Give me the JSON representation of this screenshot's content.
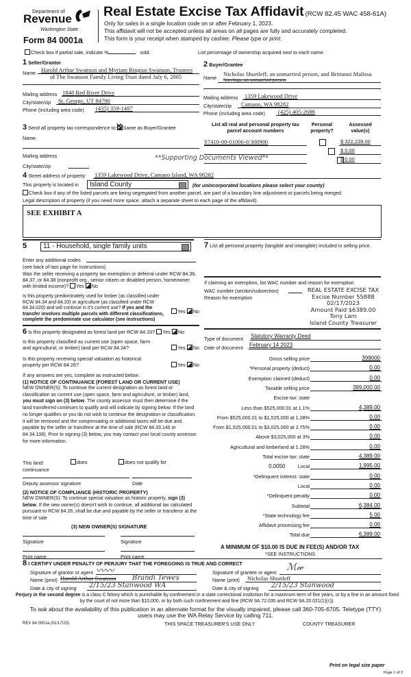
{
  "header": {
    "dept_of": "Department of",
    "revenue": "Revenue",
    "state": "Washington State",
    "form_number": "Form 84 0001a",
    "title": "Real Estate Excise Tax Affidavit",
    "title_ref": "(RCW 82.45 WAC 458-61A)",
    "line1": "Only for sales in a single location code on or after February 1, 2023.",
    "line2": "This affidavit will not be accepted unless all areas on all pages are fully and accurately completed.",
    "line3": "This form is your receipt when stamped by cashier. ",
    "line3_italic": "Please type or print."
  },
  "partial_sale": {
    "label": "Check box if partial sale, indicate %",
    "sold": "sold.",
    "checked": false
  },
  "ownership_note": "List percentage of ownership acquired next to each name.",
  "seller": {
    "num": "1",
    "heading": "Seller/Grantor",
    "name_label": "Name",
    "name1": "Harold Arthur Swanson and Myriam Ringius Swanson, Trustees",
    "name2": "of The Swanson Family Living Trust dated July 6, 2005",
    "mailing_label": "Mailing address",
    "mailing": "1848 Red River Drive",
    "city_label": "City/state/zip",
    "city": "St. George, UT 84790",
    "phone_label": "Phone (including area code)",
    "phone": "(435) 359-1487"
  },
  "buyer": {
    "num": "2",
    "heading": "Buyer/Grantee",
    "name_label": "Name",
    "name1": "Nicholas Shurtleff, an unmarried person, and Brittanni Malissa",
    "name2": "Stavinga, an unmarried person",
    "mailing_label": "Mailing address",
    "mailing": "1359 Lakewood Drive",
    "city_label": "City/state/zip",
    "city": "Camano, WA 98282",
    "phone_label": "Phone (including area code)",
    "phone": "(425) 405-2688"
  },
  "correspondence": {
    "num": "3",
    "label": "Send all property tax correspondence to:",
    "same_label": "Same as Buyer/Grantee",
    "same_checked": true,
    "name_label": "Name",
    "mailing_label": "Mailing address",
    "city_label": "City/state/zip"
  },
  "parcels": {
    "col1": "List all real and personal property tax parcel account numbers",
    "col2": "Personal property?",
    "col3": "Assessed value(s)",
    "rows": [
      {
        "number": "S7410-00-01006-0/308900",
        "personal": false,
        "value": "$ 322,239.00"
      },
      {
        "number": "",
        "personal": false,
        "value": "$ 0.00"
      },
      {
        "number": "",
        "personal": false,
        "value": "$ 0.00"
      }
    ],
    "supporting": "**Supporting Documents Viewed**"
  },
  "property": {
    "num": "4",
    "street_label": "Street address of property",
    "street": "1359 Lakewood Drive, Camano Island, WA 98282",
    "located_label": "This property is located in",
    "county": "Island County",
    "county_note": "(for unincorporated locations please select your county)",
    "segregated_label": "Check box if any of the listed parcels are being segregated from another parcel, are part of a boundary line adjustment or parcels being merged.",
    "legal_label": "Legal description of property (if you need more space, attach a separate sheet to each page of the affidavit).",
    "legal": "SEE EXHIBIT A"
  },
  "section5": {
    "num": "5",
    "use_code": "11 - Household, single family units",
    "additional_codes": "Enter any additional codes",
    "see_back": "(see back of last page for instructions)",
    "q1": "Was the seller receiving a property tax exemption or deferral under RCW 84.36, 84.37, or 84.38 (nonprofit org., senior citizen or disabled person, homeowner with limited income)?",
    "q2": "Is this property predominately used for timber (as classified under RCW 84.34 and 84.33) or agriculture (as classified under RCW 84.34.020) and will continue in it's current use? ",
    "q2_bold": "If yes and the transfer involves multiple parcels with different classifications, complete the predominate use calculator (see instructions)",
    "yes": "Yes",
    "no": "No"
  },
  "section6": {
    "num": "6",
    "q1": "Is this property designated as forest land per RCW 84.33?",
    "q2": "Is this property classified as current use (open space, farm and agricultural, or timber) land per RCW 84.34?",
    "q3": "Is this property receiving special valuation as historical property per RCW 84.26?",
    "if_yes": "If any answers are yes, complete as instructed below.",
    "notice1_title": "(1) NOTICE OF CONTINUANCE (FOREST LAND OR CURRENT USE)",
    "notice1_a": "NEW OWNER(S): To continue the current designation as forest land or classification as current use (open space, farm and agriculture, or timber) land, ",
    "notice1_bold": "you must sign on (3) below",
    "notice1_b": ". The county assessor must then determine if the land transferred continues  to qualify and will indicate by signing below. If the land no longer qualifies or you do not wish to continue the designation or classification, it will be removed and the compensating or additional taxes will be due and payable by the seller or transferor at the time of sale (RCW 84.33.140 or 84.34.108). Prior to signing (3) below, you may contact your local county assessor for more information.",
    "this_land": "This land:",
    "continuance": "continuance",
    "does": "does",
    "does_not": "does not qualify for",
    "deputy": "Deputy assessor signature",
    "date": "Date",
    "notice2_title": "(2) NOTICE OF COMPLIANCE (HISTORIC PROPERTY)",
    "notice2_a": "NEW OWNER(S): To continue special valuation as historic property, ",
    "notice2_bold": "sign (3) below",
    "notice2_b": ". If the new owner(s) doesn't wish to continue, all additional tax calculated pursuant to RCW 84.26, shall be due and payable by the seller or transferor at the time of sale",
    "new_owner_sig": "(3) NEW OWNER(S) SIGNATURE",
    "signature": "Signature",
    "print_name": "Print name"
  },
  "section7": {
    "num": "7",
    "label": "List all personal property (tangible and intangible) included in selling price.",
    "exemption_label": "If claiming an exemption, list WAC number and reason for exemption",
    "wac_label": "WAC number (section/subsection)",
    "reason_label": "Reason for exemption",
    "stamp": [
      "REAL ESTATE EXCISE TAX",
      "Excise Number 55888",
      "02/17/2023",
      "Amount Paid $6389.00",
      "Tony Lam",
      "Island County Treasurer"
    ],
    "doc_type_label": "Type of document",
    "doc_type": "Statutory Warranty Deed",
    "doc_date_label": "Date of document",
    "doc_date": "February 14 2023"
  },
  "tax": {
    "rows": [
      {
        "label": "Gross selling price",
        "value": "399000"
      },
      {
        "label": "*Personal property (deduct)",
        "value": "0.00"
      },
      {
        "label": "Exemption claimed (deduct)",
        "value": "0.00"
      },
      {
        "label": "Taxable selling price",
        "value": "399,000.00"
      },
      {
        "label": "Excise tax: state",
        "value": null
      },
      {
        "label": "Less than $525,000.01 at 1.1%",
        "value": "4,389.00"
      },
      {
        "label": "From $525,000.01 to $1,525,000 at 1.28%",
        "value": "0.00"
      },
      {
        "label": "From $1,525,000.01 to $3,025,000 at 2.75%",
        "value": "0.00"
      },
      {
        "label": "Above $3,025,000 at 3%",
        "value": "0.00"
      },
      {
        "label": "Agricultural and timberland at 1.28%",
        "value": "0.00"
      },
      {
        "label": "Total excise tax: state",
        "value": "4,389.00"
      },
      {
        "label": "Local",
        "value": "1,995.00",
        "rate": "0.0050"
      },
      {
        "label": "*Delinquent interest: state",
        "value": "0.00"
      },
      {
        "label": "Local",
        "value": "0.00"
      },
      {
        "label": "*Delinquent penalty",
        "value": "0.00"
      },
      {
        "label": "Subtotal",
        "value": "6,384.00"
      },
      {
        "label": "*State technology fee",
        "value": "5.00"
      },
      {
        "label": "Affidavit processing fee",
        "value": "0.00"
      },
      {
        "label": "Total due",
        "value": "6,389.00"
      }
    ],
    "minimum": "A MINIMUM OF $10.00 IS DUE IN FEE(S) AND/OR TAX",
    "see_instructions": "*SEE INSTRUCTIONS"
  },
  "section8": {
    "num": "8",
    "certify": "I CERTIFY UNDER PENALTY OF PERJURY THAT THE FOREGOING IS TRUE AND CORRECT",
    "grantor_sig_label": "Signature of grantor or agent",
    "grantee_sig_label": "Signature of grantee or agent",
    "name_label": "Name (print)",
    "date_label": "Date & city of signing",
    "grantor_name": "Harold Arthur Swanson",
    "grantor_name_hand": "Brandi Tewes",
    "grantor_date": "2/15/23  Stanwood WA",
    "grantee_name": "Nicholas Shurtleff",
    "grantee_date": "2/15/23  Stanwood"
  },
  "footer": {
    "perjury_bold": "Perjury in the second degree",
    "perjury": " is a class C felony which is punishable by confinement in a state correctional institution for a maximum term of five years, or by a fine in an amount fixed by the court of not more than $10,000, or by both such confinement and fine (RCW 9A.72.030 and RCW 9A.20.021(1)(c)).",
    "alt_format": "To ask about the availability of this publication in an alternate format for the visually impaired, please call 360-705-6705. Teletype (TTY) users may use the WA Relay Service by calling 711.",
    "rev": "REV 84 0001a  (01/17/23)",
    "treasurer_use": "THIS SPACE TREASURER'S USE ONLY",
    "county_treasurer": "COUNTY TREASURER",
    "print_legal": "Print on legal size paper",
    "page": "Page 1 of 2"
  }
}
